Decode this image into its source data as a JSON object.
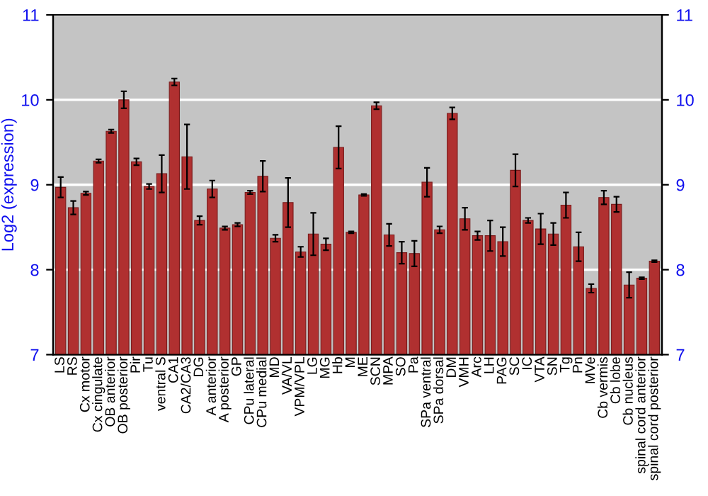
{
  "chart_data": {
    "type": "bar",
    "ylabel": "Log2 (expression)",
    "categories": [
      "LS",
      "RS",
      "Cx motor",
      "Cx cingulate",
      "OB anterior",
      "OB posterior",
      "Pir",
      "Tu",
      "ventral S",
      "CA1",
      "CA2/CA3",
      "DG",
      "A anterior",
      "A posterior",
      "GP",
      "CPu lateral",
      "CPu medial",
      "MD",
      "VA/VL",
      "VPM/VPL",
      "LG",
      "MG",
      "Hb",
      "M",
      "ME",
      "SCN",
      "MPA",
      "SO",
      "Pa",
      "SPa ventral",
      "SPa dorsal",
      "DM",
      "VMH",
      "Arc",
      "LH",
      "PAG",
      "SC",
      "IC",
      "VTA",
      "SN",
      "Tg",
      "Pn",
      "MVe",
      "Cb vermis",
      "Cb lobe",
      "Cb nucleus",
      "spinal cord anterior",
      "spinal cord posterior"
    ],
    "values": [
      8.97,
      8.73,
      8.9,
      9.28,
      9.63,
      10.0,
      9.27,
      8.98,
      9.13,
      10.21,
      9.33,
      8.58,
      8.95,
      8.49,
      8.53,
      8.91,
      9.1,
      8.37,
      8.79,
      8.21,
      8.42,
      8.3,
      9.44,
      8.44,
      8.88,
      9.93,
      8.41,
      8.2,
      8.19,
      9.03,
      8.47,
      9.84,
      8.6,
      8.4,
      8.4,
      8.33,
      9.17,
      8.58,
      8.48,
      8.42,
      8.76,
      8.27,
      7.78,
      8.85,
      8.77,
      7.82,
      7.9,
      8.1
    ],
    "errors": [
      0.12,
      0.08,
      0.02,
      0.02,
      0.02,
      0.1,
      0.04,
      0.03,
      0.22,
      0.04,
      0.38,
      0.05,
      0.1,
      0.02,
      0.02,
      0.02,
      0.18,
      0.04,
      0.29,
      0.06,
      0.25,
      0.07,
      0.25,
      0.01,
      0.01,
      0.04,
      0.13,
      0.13,
      0.15,
      0.17,
      0.04,
      0.07,
      0.13,
      0.05,
      0.18,
      0.17,
      0.19,
      0.03,
      0.18,
      0.13,
      0.15,
      0.17,
      0.05,
      0.08,
      0.09,
      0.15,
      0.01,
      0.01
    ],
    "color": "#b03030",
    "ylim": [
      7,
      11
    ],
    "yticks": [
      7,
      8,
      9,
      10,
      11
    ],
    "y2lim": [
      7,
      11
    ],
    "y2ticks": [
      7,
      8,
      9,
      10,
      11
    ],
    "grid": "y"
  }
}
